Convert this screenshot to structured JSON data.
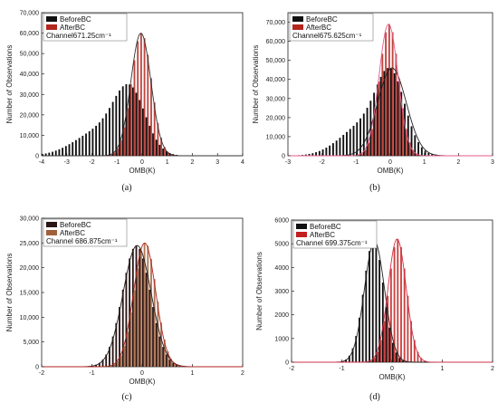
{
  "chart_data": [
    {
      "type": "bar",
      "panel": "a",
      "caption": "(a)",
      "xlabel": "OMB(K)",
      "ylabel": "Number of Observations",
      "xlim": [
        -4,
        4
      ],
      "ylim": [
        0,
        70000
      ],
      "xticks": [
        -4,
        -3,
        -2,
        -1,
        0,
        1,
        2,
        3,
        4
      ],
      "yticks": [
        0,
        10000,
        20000,
        30000,
        40000,
        50000,
        60000,
        70000
      ],
      "ytick_labels": [
        "0",
        "10,000",
        "20,000",
        "30,000",
        "40,000",
        "50,000",
        "60,000",
        "70,000"
      ],
      "channel_label": "Channel671.25cm⁻¹",
      "series": [
        {
          "name": "BeforeBC",
          "color": "#111111",
          "mean": -0.45,
          "sd": 0.62,
          "peak": 35000,
          "skew": "left"
        },
        {
          "name": "AfterBC",
          "color": "#b3261e",
          "mean": -0.05,
          "sd": 0.4,
          "peak": 60000,
          "fit_color": "#333333"
        }
      ]
    },
    {
      "type": "bar",
      "panel": "b",
      "caption": "(b)",
      "xlabel": "OMB(K)",
      "ylabel": "Number of Observations",
      "xlim": [
        -3,
        3
      ],
      "ylim": [
        0,
        75000
      ],
      "xticks": [
        -3,
        -2,
        -1,
        0,
        1,
        2,
        3
      ],
      "yticks": [
        0,
        10000,
        20000,
        30000,
        40000,
        50000,
        60000,
        70000
      ],
      "ytick_labels": [
        "0",
        "10,000",
        "20,000",
        "30,000",
        "40,000",
        "50,000",
        "60,000",
        "70,000"
      ],
      "channel_label": "Channel675.625cm⁻¹",
      "series": [
        {
          "name": "BeforeBC",
          "color": "#111111",
          "mean": 0.05,
          "sd": 0.42,
          "peak": 46000,
          "skew": "left",
          "fit_color": "#222222"
        },
        {
          "name": "AfterBC",
          "color": "#b3261e",
          "mean": -0.05,
          "sd": 0.28,
          "peak": 69000,
          "fit_color": "#e65a8c"
        }
      ]
    },
    {
      "type": "bar",
      "panel": "c",
      "caption": "(c)",
      "xlabel": "OMB(K)",
      "ylabel": "Number of Observations",
      "xlim": [
        -2,
        2
      ],
      "ylim": [
        0,
        30000
      ],
      "xticks": [
        -2,
        -1,
        0,
        1,
        2
      ],
      "yticks": [
        0,
        5000,
        10000,
        15000,
        20000,
        25000,
        30000
      ],
      "ytick_labels": [
        "0",
        "5,000",
        "10,000",
        "15,000",
        "20,000",
        "25,000",
        "30,000"
      ],
      "channel_label": "Channel 686.875cm⁻¹",
      "series": [
        {
          "name": "BeforeBC",
          "color": "#2a1616",
          "mean": -0.1,
          "sd": 0.28,
          "peak": 24500,
          "fit_color": "#222222"
        },
        {
          "name": "AfterBC",
          "color": "#a0603a",
          "mean": 0.05,
          "sd": 0.22,
          "peak": 25000,
          "fit_color": "#b3261e"
        }
      ]
    },
    {
      "type": "bar",
      "panel": "d",
      "caption": "(d)",
      "xlabel": "OMB(K)",
      "ylabel": "Number of Observations",
      "xlim": [
        -2,
        2
      ],
      "ylim": [
        0,
        6000
      ],
      "xticks": [
        -2,
        -1,
        0,
        1,
        2
      ],
      "yticks": [
        0,
        1000,
        2000,
        3000,
        4000,
        5000,
        6000
      ],
      "ytick_labels": [
        "0",
        "1000",
        "2000",
        "3000",
        "4000",
        "5000",
        "6000"
      ],
      "channel_label": "Channel 699.375cm⁻¹",
      "series": [
        {
          "name": "BeforeBC",
          "color": "#111111",
          "mean": -0.35,
          "sd": 0.2,
          "peak": 5100,
          "fit_color": "#222222"
        },
        {
          "name": "AfterBC",
          "color": "#c41e1e",
          "mean": 0.1,
          "sd": 0.18,
          "peak": 5200,
          "fit_color": "#d0304a"
        }
      ]
    }
  ]
}
